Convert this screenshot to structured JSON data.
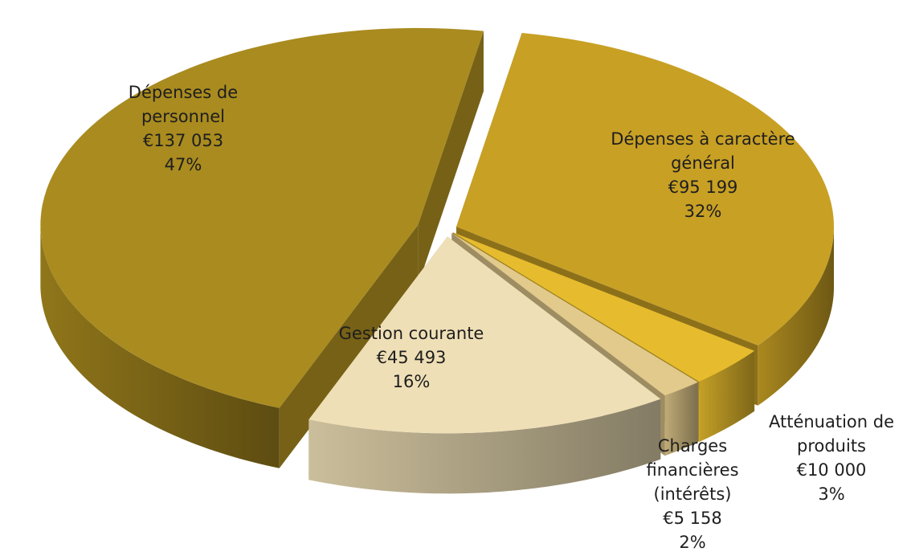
{
  "chart_data": {
    "type": "pie",
    "categories": [
      "Dépenses à caractère général",
      "Atténuation de produits",
      "Charges financières (intérêts)",
      "Gestion courante",
      "Dépenses de personnel"
    ],
    "values": [
      95199,
      10000,
      5158,
      45493,
      137053
    ],
    "value_labels": [
      "€95 199",
      "€10 000",
      "€5 158",
      "€45 493",
      "€137 053"
    ],
    "percentages": [
      32,
      3,
      2,
      16,
      47
    ],
    "percentage_labels": [
      "32%",
      "3%",
      "2%",
      "16%",
      "47%"
    ],
    "colors": [
      "#c8a024",
      "#e6bc2e",
      "#e2c98c",
      "#efdfb6",
      "#a98b1f"
    ]
  }
}
